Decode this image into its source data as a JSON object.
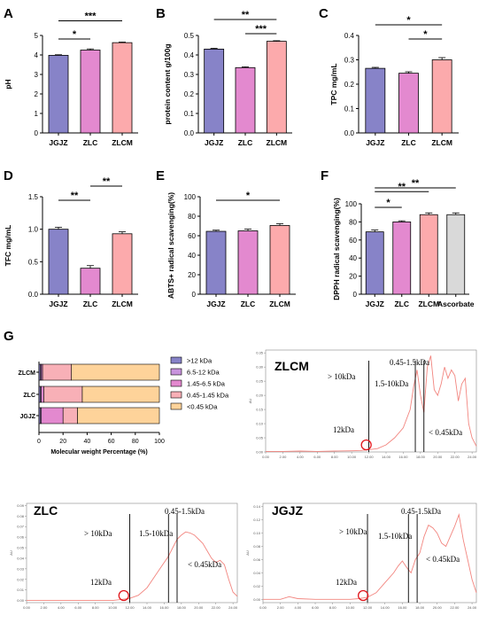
{
  "colors": {
    "JGJZ": "#8783c8",
    "ZLC": "#e389cf",
    "ZLCM": "#fcaaac",
    "Ascorbate": "#d9d9d9",
    "stack": [
      "#8783c8",
      "#c893dd",
      "#e389cf",
      "#f8b0b7",
      "#fed39a"
    ],
    "chrom_line": "#f2857f",
    "circle": "#e0161c"
  },
  "chart_data": [
    {
      "panel": "A",
      "type": "bar",
      "categories": [
        "JGJZ",
        "ZLC",
        "ZLCM"
      ],
      "values": [
        3.98,
        4.25,
        4.63
      ],
      "errors": [
        0.03,
        0.06,
        0.03
      ],
      "ylabel": "pH",
      "ylim": [
        0,
        5
      ],
      "yticks": [
        "0",
        "1",
        "2",
        "3",
        "4",
        "5"
      ],
      "significance": [
        {
          "from": 0,
          "to": 1,
          "text": "*"
        },
        {
          "from": 0,
          "to": 2,
          "text": "***"
        }
      ]
    },
    {
      "panel": "B",
      "type": "bar",
      "categories": [
        "JGJZ",
        "ZLC",
        "ZLCM"
      ],
      "values": [
        0.43,
        0.335,
        0.47
      ],
      "errors": [
        0.004,
        0.004,
        0.003
      ],
      "ylabel": "protein content g/100g",
      "ylim": [
        0,
        0.5
      ],
      "yticks": [
        "0.0",
        "0.1",
        "0.2",
        "0.3",
        "0.4",
        "0.5"
      ],
      "significance": [
        {
          "from": 1,
          "to": 2,
          "text": "***"
        },
        {
          "from": 0,
          "to": 2,
          "text": "**"
        }
      ]
    },
    {
      "panel": "C",
      "type": "bar",
      "categories": [
        "JGJZ",
        "ZLC",
        "ZLCM"
      ],
      "values": [
        0.265,
        0.245,
        0.3
      ],
      "errors": [
        0.004,
        0.006,
        0.009
      ],
      "ylabel": "TPC mg/mL",
      "ylim": [
        0,
        0.4
      ],
      "yticks": [
        "0.0",
        "0.1",
        "0.2",
        "0.3",
        "0.4"
      ],
      "significance": [
        {
          "from": 1,
          "to": 2,
          "text": "*"
        },
        {
          "from": 0,
          "to": 2,
          "text": "*"
        }
      ]
    },
    {
      "panel": "D",
      "type": "bar",
      "categories": [
        "JGJZ",
        "ZLC",
        "ZLCM"
      ],
      "values": [
        1.0,
        0.4,
        0.93
      ],
      "errors": [
        0.03,
        0.04,
        0.03
      ],
      "ylabel": "TFC mg/mL",
      "ylim": [
        0,
        1.5
      ],
      "yticks": [
        "0.0",
        "0.5",
        "1.0",
        "1.5"
      ],
      "significance": [
        {
          "from": 0,
          "to": 1,
          "text": "**"
        },
        {
          "from": 1,
          "to": 2,
          "text": "**"
        }
      ]
    },
    {
      "panel": "E",
      "type": "bar",
      "categories": [
        "JGJZ",
        "ZLC",
        "ZLCM"
      ],
      "values": [
        64.5,
        65,
        70.5
      ],
      "errors": [
        1.2,
        1.8,
        1.8
      ],
      "ylabel": "ABTS+ radical scavenging(%)",
      "ylim": [
        0,
        100
      ],
      "yticks": [
        "0",
        "20",
        "40",
        "60",
        "80",
        "100"
      ],
      "significance": [
        {
          "from": 0,
          "to": 2,
          "text": "*"
        }
      ]
    },
    {
      "panel": "F",
      "type": "bar",
      "categories": [
        "JGJZ",
        "ZLC",
        "ZLCM",
        "Ascorbate"
      ],
      "values": [
        69,
        80,
        88,
        88
      ],
      "errors": [
        2,
        1.2,
        2,
        2
      ],
      "ylabel": "DPPH radical scavenging(%)",
      "ylim": [
        0,
        100
      ],
      "yticks": [
        "0",
        "20",
        "40",
        "60",
        "80",
        "100"
      ],
      "significance": [
        {
          "from": 0,
          "to": 1,
          "text": "*"
        },
        {
          "from": 0,
          "to": 2,
          "text": "**"
        },
        {
          "from": 0,
          "to": 3,
          "text": "**"
        }
      ]
    },
    {
      "panel": "G",
      "type": "stacked-bar",
      "categories": [
        "ZLCM",
        "ZLC",
        "JGJZ"
      ],
      "series": [
        {
          "name": ">12 kDa",
          "values": [
            1,
            1,
            1
          ]
        },
        {
          "name": "6.5-12 kDa",
          "values": [
            1,
            1,
            1
          ]
        },
        {
          "name": "1.45-6.5 kDa",
          "values": [
            1,
            2,
            18
          ]
        },
        {
          "name": "0.45-1.45 kDa",
          "values": [
            24,
            32,
            12
          ]
        },
        {
          "name": "<0.45 kDa",
          "values": [
            73,
            64,
            68
          ]
        }
      ],
      "xlabel": "Molecular weight Percentage (%)",
      "xlim": [
        0,
        100
      ],
      "xticks": [
        "0",
        "20",
        "40",
        "60",
        "80",
        "100"
      ]
    },
    {
      "panel": "G",
      "type": "line",
      "name": "ZLCM",
      "xticks": [
        "0.00",
        "2.00",
        "4.00",
        "6.00",
        "8.00",
        "10.00",
        "12.00",
        "14.00",
        "16.00",
        "18.00",
        "20.00",
        "22.00",
        "24.00"
      ],
      "yticks": [
        "0.00",
        "0.05",
        "0.10",
        "0.15",
        "0.20",
        "0.25",
        "0.30",
        "0.35"
      ],
      "yunit": "AU",
      "xlim": [
        0,
        24.5
      ],
      "ylim": [
        0,
        0.36
      ],
      "cutoffs": [
        12.0,
        17.4,
        18.4
      ],
      "circle_x": 11.7,
      "labels": {
        "gt10": "> 10kDa",
        "r1": "1.5-10kDa",
        "r2": "0.45-1.5kDa",
        "lt": "< 0.45kDa",
        "k12": "12kDa"
      },
      "x": [
        0,
        2,
        4,
        6,
        8,
        10,
        11,
        12,
        13,
        14,
        15,
        16,
        16.8,
        17.2,
        17.6,
        18.0,
        18.4,
        18.8,
        19.2,
        19.6,
        20.0,
        20.4,
        20.8,
        21.2,
        21.6,
        22.0,
        22.4,
        22.8,
        23.2,
        23.6,
        24.0,
        24.5
      ],
      "y": [
        0.002,
        0.002,
        0.003,
        0.002,
        0.003,
        0.004,
        0.005,
        0.008,
        0.012,
        0.025,
        0.05,
        0.085,
        0.15,
        0.23,
        0.29,
        0.2,
        0.14,
        0.3,
        0.34,
        0.22,
        0.2,
        0.24,
        0.3,
        0.26,
        0.29,
        0.27,
        0.18,
        0.24,
        0.26,
        0.1,
        0.05,
        0.02
      ]
    },
    {
      "panel": "G",
      "type": "line",
      "name": "ZLC",
      "xticks": [
        "0.00",
        "2.00",
        "4.00",
        "6.00",
        "8.00",
        "10.00",
        "12.00",
        "14.00",
        "16.00",
        "18.00",
        "20.00",
        "22.00",
        "24.00"
      ],
      "yticks": [
        "0.00",
        "0.01",
        "0.02",
        "0.03",
        "0.04",
        "0.05",
        "0.06",
        "0.07",
        "0.08",
        "0.09"
      ],
      "yunit": "AU",
      "xlim": [
        0,
        24.5
      ],
      "ylim": [
        -0.002,
        0.092
      ],
      "cutoffs": [
        12.0,
        16.5,
        17.5
      ],
      "circle_x": 11.3,
      "labels": {
        "gt10": "> 10kDa",
        "r1": "1.5-10kDa",
        "r2": "0.45-1.5kDa",
        "lt": "< 0.45kDa",
        "k12": "12kDa"
      },
      "x": [
        0,
        2,
        4,
        6,
        8,
        10,
        11,
        12,
        13,
        14,
        15,
        16,
        16.5,
        17.0,
        17.5,
        18.0,
        18.5,
        19.0,
        19.5,
        20.0,
        20.5,
        21.0,
        21.5,
        22.0,
        22.5,
        23.0,
        23.5,
        24.0,
        24.5
      ],
      "y": [
        0.0,
        0.0,
        0.0,
        0.0,
        0.0,
        0.0,
        0.001,
        0.002,
        0.005,
        0.012,
        0.024,
        0.036,
        0.042,
        0.05,
        0.058,
        0.062,
        0.065,
        0.064,
        0.062,
        0.058,
        0.054,
        0.047,
        0.04,
        0.036,
        0.038,
        0.034,
        0.02,
        0.008,
        0.004
      ]
    },
    {
      "panel": "G",
      "type": "line",
      "name": "JGJZ",
      "xticks": [
        "0.00",
        "2.00",
        "4.00",
        "6.00",
        "8.00",
        "10.00",
        "12.00",
        "14.00",
        "16.00",
        "18.00",
        "20.00",
        "22.00",
        "24.00"
      ],
      "yticks": [
        "0.00",
        "0.02",
        "0.04",
        "0.06",
        "0.08",
        "0.10",
        "0.12",
        "0.14"
      ],
      "yunit": "AU",
      "xlim": [
        0,
        24.5
      ],
      "ylim": [
        -0.005,
        0.145
      ],
      "cutoffs": [
        12.0,
        16.7,
        17.7
      ],
      "circle_x": 11.5,
      "labels": {
        "gt10": "> 10kDa",
        "r1": "1.5-10kDa",
        "r2": "0.45-1.5kDa",
        "lt": "< 0.45kDa",
        "k12": "12kDa"
      },
      "x": [
        0,
        2,
        3,
        4,
        6,
        8,
        10,
        11,
        12,
        13,
        14,
        15,
        15.5,
        16,
        16.5,
        17.0,
        17.5,
        18.0,
        18.5,
        19.0,
        19.5,
        20.0,
        20.5,
        21.0,
        21.5,
        22.0,
        22.5,
        23.0,
        23.5,
        24.0,
        24.5
      ],
      "y": [
        0.0,
        0.0,
        0.004,
        0.001,
        0.0,
        0.0,
        0.0,
        0.001,
        0.003,
        0.01,
        0.025,
        0.04,
        0.05,
        0.058,
        0.048,
        0.04,
        0.06,
        0.07,
        0.095,
        0.112,
        0.108,
        0.1,
        0.085,
        0.08,
        0.095,
        0.11,
        0.128,
        0.09,
        0.06,
        0.03,
        0.01
      ]
    }
  ]
}
